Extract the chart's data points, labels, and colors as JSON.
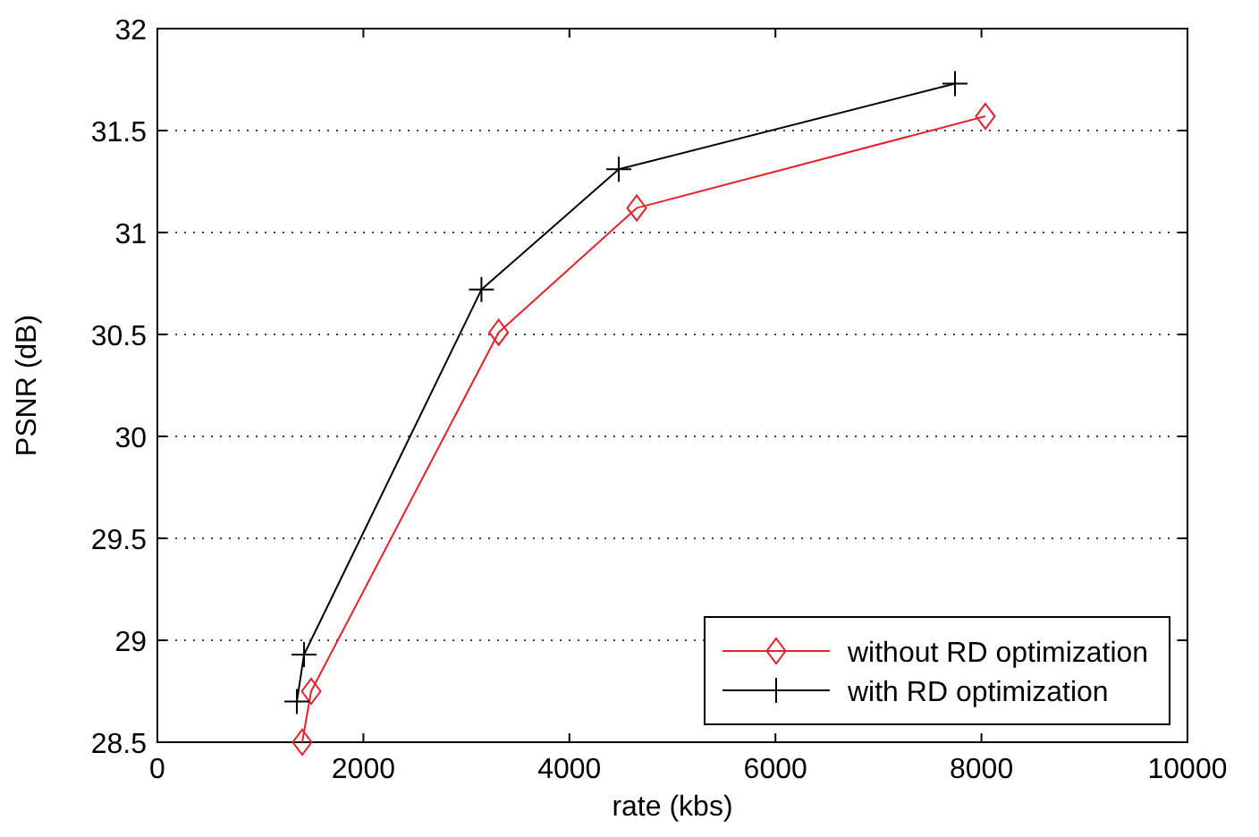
{
  "chart_data": {
    "type": "line",
    "xlabel": "rate (kbs)",
    "ylabel": "PSNR (dB)",
    "xlim": [
      0,
      10000
    ],
    "xticks": [
      0,
      2000,
      4000,
      6000,
      8000,
      10000
    ],
    "ylim": [
      28.5,
      32
    ],
    "yticks": [
      28.5,
      29,
      29.5,
      30,
      30.5,
      31,
      31.5,
      32
    ],
    "grid": "y",
    "legend": "bottom right",
    "series": [
      {
        "name": "without RD optimization",
        "color": "#e8202a",
        "marker": "diamond",
        "x": [
          1406,
          1493,
          3313,
          4653,
          8038
        ],
        "values": [
          28.5,
          28.75,
          30.51,
          31.12,
          31.57
        ]
      },
      {
        "name": "with RD optimization",
        "color": "#000000",
        "marker": "cross",
        "x": [
          1354,
          1424,
          3146,
          4479,
          7743
        ],
        "values": [
          28.7,
          28.93,
          30.72,
          31.31,
          31.73
        ]
      }
    ]
  }
}
